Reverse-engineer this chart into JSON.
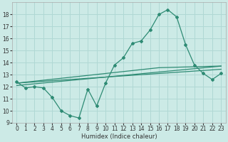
{
  "xlabel": "Humidex (Indice chaleur)",
  "x": [
    0,
    1,
    2,
    3,
    4,
    5,
    6,
    7,
    8,
    9,
    10,
    11,
    12,
    13,
    14,
    15,
    16,
    17,
    18,
    19,
    20,
    21,
    22,
    23
  ],
  "y_main": [
    12.4,
    11.9,
    12.0,
    11.9,
    11.1,
    10.0,
    9.6,
    9.4,
    11.8,
    10.4,
    12.3,
    13.8,
    14.4,
    15.6,
    15.8,
    16.7,
    18.0,
    18.4,
    17.8,
    15.5,
    13.8,
    13.1,
    12.6,
    13.1
  ],
  "y_line_top": [
    12.3,
    12.38,
    12.46,
    12.54,
    12.62,
    12.7,
    12.78,
    12.86,
    12.94,
    13.02,
    13.1,
    13.18,
    13.26,
    13.34,
    13.42,
    13.5,
    13.58,
    13.6,
    13.62,
    13.64,
    13.66,
    13.68,
    13.7,
    13.72
  ],
  "y_line_mid": [
    12.3,
    12.35,
    12.4,
    12.45,
    12.5,
    12.55,
    12.6,
    12.65,
    12.7,
    12.75,
    12.8,
    12.85,
    12.9,
    12.95,
    13.0,
    13.05,
    13.1,
    13.15,
    13.2,
    13.25,
    13.3,
    13.35,
    13.4,
    13.45
  ],
  "y_line_bot": [
    12.1,
    12.17,
    12.24,
    12.31,
    12.38,
    12.45,
    12.52,
    12.59,
    12.66,
    12.73,
    12.8,
    12.87,
    12.94,
    13.01,
    13.08,
    13.15,
    13.22,
    13.29,
    13.36,
    13.43,
    13.5,
    13.57,
    13.64,
    13.71
  ],
  "line_color": "#2e8b74",
  "bg_color": "#cceae6",
  "grid_color": "#b0d8d4",
  "ylim": [
    9,
    19
  ],
  "xlim": [
    -0.5,
    23.5
  ],
  "yticks": [
    9,
    10,
    11,
    12,
    13,
    14,
    15,
    16,
    17,
    18
  ],
  "xticks": [
    0,
    1,
    2,
    3,
    4,
    5,
    6,
    7,
    8,
    9,
    10,
    11,
    12,
    13,
    14,
    15,
    16,
    17,
    18,
    19,
    20,
    21,
    22,
    23
  ],
  "tick_fontsize": 5.5,
  "xlabel_fontsize": 6.0
}
